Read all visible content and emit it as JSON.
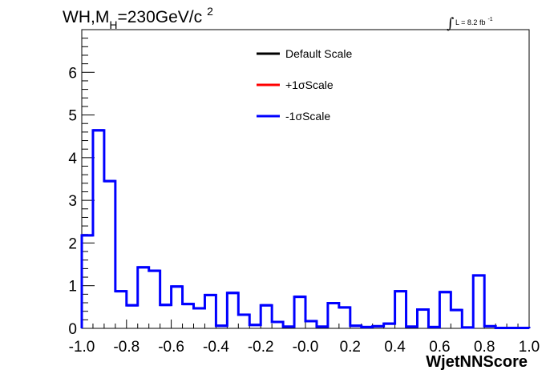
{
  "chart_data": {
    "type": "step-histogram",
    "title": {
      "prefix": "WH,M",
      "subscript": "H",
      "suffix": "=230GeV/c",
      "superscript": "2"
    },
    "luminosity": {
      "symbol": "∫",
      "text": "L = 8.2 fb",
      "superscript": "-1"
    },
    "xlabel": "WjetNNScore",
    "ylabel": "",
    "xlim": [
      -1.0,
      1.0
    ],
    "ylim": [
      0,
      7
    ],
    "x_ticks": [
      "-1.0",
      "-0.8",
      "-0.6",
      "-0.4",
      "-0.2",
      "-0.0",
      "0.2",
      "0.4",
      "0.6",
      "0.8",
      "1.0"
    ],
    "y_ticks": [
      "0",
      "1",
      "2",
      "3",
      "4",
      "5",
      "6"
    ],
    "bin_edges_start": -1.0,
    "bin_width": 0.05,
    "values": [
      2.18,
      4.64,
      3.45,
      0.87,
      0.54,
      1.43,
      1.35,
      0.55,
      0.98,
      0.57,
      0.47,
      0.78,
      0.06,
      0.83,
      0.32,
      0.08,
      0.54,
      0.15,
      0.04,
      0.74,
      0.17,
      0.04,
      0.59,
      0.49,
      0.06,
      0.03,
      0.05,
      0.11,
      0.87,
      0.04,
      0.44,
      0.03,
      0.85,
      0.43,
      0.02,
      1.24,
      0.05,
      0.01,
      0.01,
      0.01
    ],
    "series": [
      {
        "name": "Default Scale",
        "color": "#000000"
      },
      {
        "name": "+1σScale",
        "color": "#ff0000"
      },
      {
        "name": "-1σScale",
        "color": "#0000ff"
      }
    ],
    "legend_position": "top-center",
    "grid": false
  }
}
